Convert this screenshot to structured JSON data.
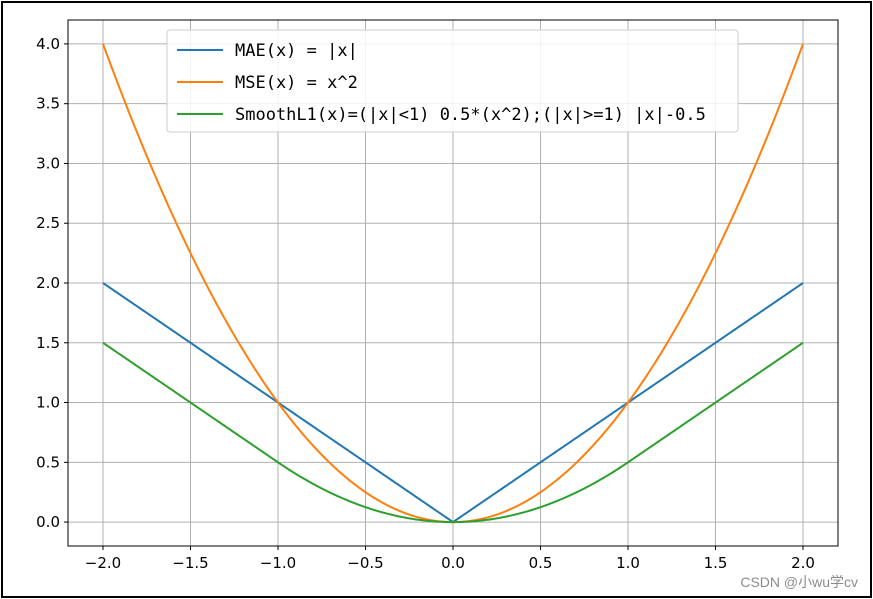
{
  "chart_data": {
    "type": "line",
    "title": "",
    "xlabel": "",
    "ylabel": "",
    "xlim": [
      -2.2,
      2.2
    ],
    "ylim": [
      -0.2,
      4.2
    ],
    "grid": true,
    "legend_position": "top-center",
    "xticks": [
      -2.0,
      -1.5,
      -1.0,
      -0.5,
      0.0,
      0.5,
      1.0,
      1.5,
      2.0
    ],
    "xtick_labels": [
      "−2.0",
      "−1.5",
      "−1.0",
      "−0.5",
      "0.0",
      "0.5",
      "1.0",
      "1.5",
      "2.0"
    ],
    "yticks": [
      0.0,
      0.5,
      1.0,
      1.5,
      2.0,
      2.5,
      3.0,
      3.5,
      4.0
    ],
    "ytick_labels": [
      "0.0",
      "0.5",
      "1.0",
      "1.5",
      "2.0",
      "2.5",
      "3.0",
      "3.5",
      "4.0"
    ],
    "x": [
      -2.0,
      -1.75,
      -1.5,
      -1.25,
      -1.0,
      -0.75,
      -0.5,
      -0.25,
      0.0,
      0.25,
      0.5,
      0.75,
      1.0,
      1.25,
      1.5,
      1.75,
      2.0
    ],
    "series": [
      {
        "name": "MAE(x) = |x|",
        "color": "#1f77b4",
        "values": [
          2.0,
          1.75,
          1.5,
          1.25,
          1.0,
          0.75,
          0.5,
          0.25,
          0.0,
          0.25,
          0.5,
          0.75,
          1.0,
          1.25,
          1.5,
          1.75,
          2.0
        ]
      },
      {
        "name": "MSE(x) = x^2",
        "color": "#ff7f0e",
        "values": [
          4.0,
          3.0625,
          2.25,
          1.5625,
          1.0,
          0.5625,
          0.25,
          0.0625,
          0.0,
          0.0625,
          0.25,
          0.5625,
          1.0,
          1.5625,
          2.25,
          3.0625,
          4.0
        ]
      },
      {
        "name": "SmoothL1(x)=(|x|<1) 0.5*(x^2);(|x|>=1) |x|-0.5",
        "color": "#2ca02c",
        "values": [
          1.5,
          1.25,
          1.0,
          0.75,
          0.5,
          0.28125,
          0.125,
          0.03125,
          0.0,
          0.03125,
          0.125,
          0.28125,
          0.5,
          0.75,
          1.0,
          1.25,
          1.5
        ]
      }
    ]
  },
  "watermark": "CSDN @小wu学cv"
}
